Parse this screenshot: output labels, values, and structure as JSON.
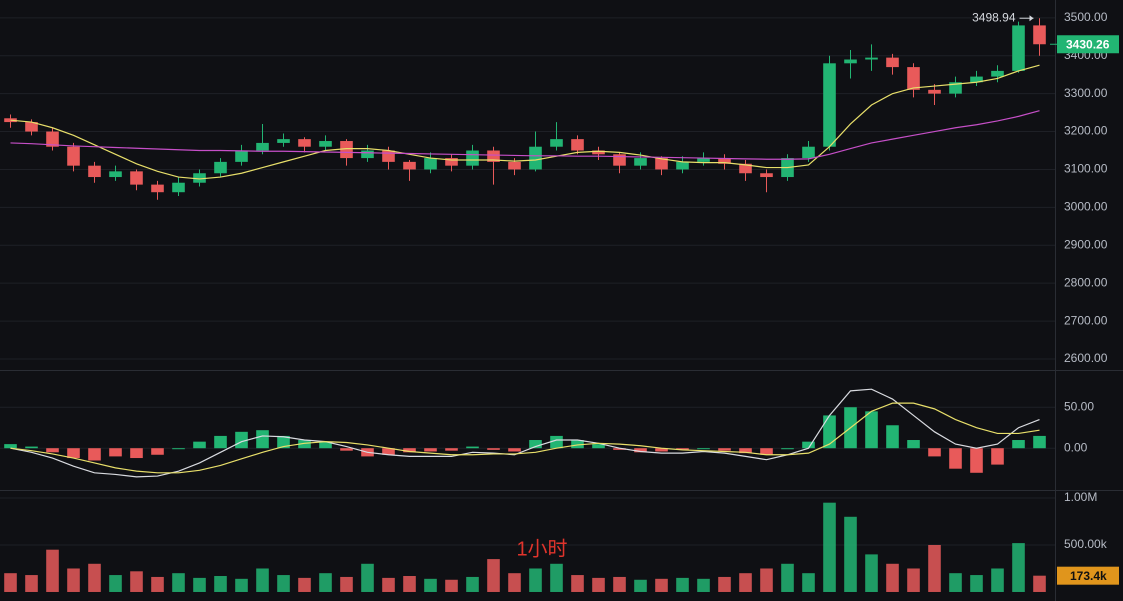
{
  "chart_data": {
    "type": "candlestick",
    "up_color": "#22b573",
    "down_color": "#e85a5a",
    "price_tag_color": "#22b573",
    "open": [
      3235,
      3225,
      3200,
      3160,
      3110,
      3080,
      3095,
      3060,
      3040,
      3065,
      3090,
      3120,
      3150,
      3170,
      3180,
      3160,
      3175,
      3130,
      3150,
      3120,
      3100,
      3130,
      3110,
      3150,
      3120,
      3100,
      3160,
      3180,
      3150,
      3140,
      3110,
      3130,
      3100,
      3120,
      3130,
      3115,
      3090,
      3080,
      3130,
      3160,
      3380,
      3390,
      3395,
      3370,
      3310,
      3300,
      3330,
      3345,
      3360,
      3480
    ],
    "high": [
      3245,
      3232,
      3210,
      3170,
      3120,
      3110,
      3100,
      3070,
      3080,
      3100,
      3130,
      3165,
      3220,
      3195,
      3185,
      3190,
      3180,
      3165,
      3160,
      3125,
      3145,
      3140,
      3165,
      3160,
      3130,
      3200,
      3225,
      3190,
      3160,
      3145,
      3145,
      3135,
      3135,
      3145,
      3140,
      3125,
      3100,
      3140,
      3175,
      3400,
      3415,
      3430,
      3405,
      3380,
      3325,
      3345,
      3360,
      3375,
      3490,
      3498.94
    ],
    "low": [
      3210,
      3190,
      3150,
      3095,
      3065,
      3070,
      3045,
      3020,
      3030,
      3055,
      3080,
      3110,
      3140,
      3160,
      3145,
      3150,
      3110,
      3120,
      3100,
      3070,
      3090,
      3095,
      3100,
      3060,
      3085,
      3095,
      3150,
      3140,
      3125,
      3090,
      3100,
      3085,
      3090,
      3110,
      3100,
      3070,
      3040,
      3070,
      3120,
      3150,
      3340,
      3360,
      3350,
      3290,
      3270,
      3290,
      3320,
      3330,
      3355,
      3400
    ],
    "close": [
      3225,
      3200,
      3160,
      3110,
      3080,
      3095,
      3060,
      3040,
      3065,
      3090,
      3120,
      3150,
      3170,
      3180,
      3160,
      3175,
      3130,
      3150,
      3120,
      3100,
      3130,
      3110,
      3150,
      3120,
      3100,
      3160,
      3180,
      3150,
      3140,
      3110,
      3130,
      3100,
      3120,
      3130,
      3115,
      3090,
      3080,
      3130,
      3160,
      3380,
      3390,
      3395,
      3370,
      3310,
      3300,
      3330,
      3345,
      3360,
      3480,
      3430.26
    ],
    "lines": [
      {
        "color": "#e8df6a",
        "values": [
          3230,
          3225,
          3210,
          3190,
          3165,
          3140,
          3115,
          3095,
          3080,
          3075,
          3080,
          3090,
          3105,
          3120,
          3135,
          3150,
          3155,
          3155,
          3150,
          3140,
          3130,
          3125,
          3125,
          3125,
          3122,
          3125,
          3135,
          3145,
          3148,
          3145,
          3138,
          3128,
          3120,
          3118,
          3118,
          3112,
          3105,
          3105,
          3112,
          3160,
          3220,
          3270,
          3300,
          3315,
          3320,
          3325,
          3330,
          3340,
          3360,
          3375
        ]
      },
      {
        "color": "#c64fc8",
        "values": [
          3170,
          3168,
          3165,
          3162,
          3160,
          3158,
          3156,
          3154,
          3152,
          3150,
          3150,
          3149,
          3148,
          3148,
          3147,
          3146,
          3145,
          3144,
          3143,
          3142,
          3141,
          3140,
          3139,
          3138,
          3137,
          3136,
          3136,
          3135,
          3135,
          3134,
          3133,
          3132,
          3131,
          3130,
          3129,
          3128,
          3127,
          3127,
          3128,
          3140,
          3155,
          3170,
          3180,
          3190,
          3200,
          3210,
          3218,
          3228,
          3240,
          3255
        ]
      }
    ],
    "ylim": [
      2571,
      3547
    ],
    "yticks": [
      {
        "value": 2600,
        "label": "2600.00"
      },
      {
        "value": 2700,
        "label": "2700.00"
      },
      {
        "value": 2800,
        "label": "2800.00"
      },
      {
        "value": 2900,
        "label": "2900.00"
      },
      {
        "value": 3000,
        "label": "3000.00"
      },
      {
        "value": 3100,
        "label": "3100.00"
      },
      {
        "value": 3200,
        "label": "3200.00"
      },
      {
        "value": 3300,
        "label": "3300.00"
      },
      {
        "value": 3400,
        "label": "3400.00"
      },
      {
        "value": 3500,
        "label": "3500.00"
      }
    ],
    "grid": true,
    "macd": {
      "ylim": [
        -51,
        93
      ],
      "yticks": [
        {
          "value": 0,
          "label": "0.00"
        },
        {
          "value": 50,
          "label": "50.00"
        }
      ],
      "histogram": [
        5,
        2,
        -5,
        -12,
        -15,
        -10,
        -12,
        -8,
        0,
        8,
        15,
        20,
        22,
        15,
        10,
        8,
        -3,
        -10,
        -8,
        -5,
        -4,
        -3,
        2,
        -2,
        -4,
        10,
        15,
        10,
        5,
        -2,
        -5,
        -4,
        -2,
        0,
        -3,
        -6,
        -8,
        0,
        8,
        40,
        50,
        45,
        28,
        10,
        -10,
        -25,
        -30,
        -20,
        10,
        15
      ],
      "lines": [
        {
          "color": "#d9dbe0",
          "values": [
            0,
            -5,
            -12,
            -22,
            -30,
            -32,
            -35,
            -34,
            -28,
            -18,
            -5,
            8,
            15,
            14,
            10,
            8,
            2,
            -5,
            -8,
            -10,
            -10,
            -10,
            -5,
            -6,
            -8,
            2,
            10,
            10,
            6,
            0,
            -4,
            -6,
            -6,
            -4,
            -6,
            -10,
            -14,
            -8,
            0,
            40,
            70,
            72,
            60,
            40,
            20,
            5,
            0,
            5,
            25,
            35
          ]
        },
        {
          "color": "#e8df6a",
          "values": [
            0,
            -3,
            -7,
            -12,
            -18,
            -24,
            -28,
            -30,
            -30,
            -27,
            -21,
            -13,
            -5,
            2,
            6,
            8,
            7,
            4,
            0,
            -4,
            -6,
            -8,
            -8,
            -7,
            -7,
            -5,
            0,
            4,
            6,
            5,
            3,
            0,
            -2,
            -3,
            -4,
            -5,
            -8,
            -8,
            -6,
            5,
            25,
            45,
            55,
            55,
            48,
            35,
            25,
            18,
            18,
            22
          ]
        }
      ]
    },
    "volume": {
      "ylim": [
        -64000,
        1085000
      ],
      "yticks": [
        {
          "value": 500000,
          "label": "500.00k"
        },
        {
          "value": 1000000,
          "label": "1.00M"
        }
      ],
      "values": [
        200000,
        180000,
        450000,
        250000,
        300000,
        180000,
        220000,
        160000,
        200000,
        150000,
        170000,
        140000,
        250000,
        180000,
        150000,
        200000,
        160000,
        300000,
        150000,
        170000,
        140000,
        130000,
        160000,
        350000,
        200000,
        250000,
        300000,
        180000,
        150000,
        160000,
        130000,
        140000,
        150000,
        140000,
        160000,
        200000,
        250000,
        300000,
        200000,
        950000,
        800000,
        400000,
        300000,
        250000,
        500000,
        200000,
        180000,
        250000,
        520000,
        173400
      ],
      "tag": {
        "value": 173400,
        "label": "173.4k"
      },
      "tag_color": "#e0951c"
    },
    "annotation": "1小时",
    "annotation_color": "#e0342c"
  }
}
